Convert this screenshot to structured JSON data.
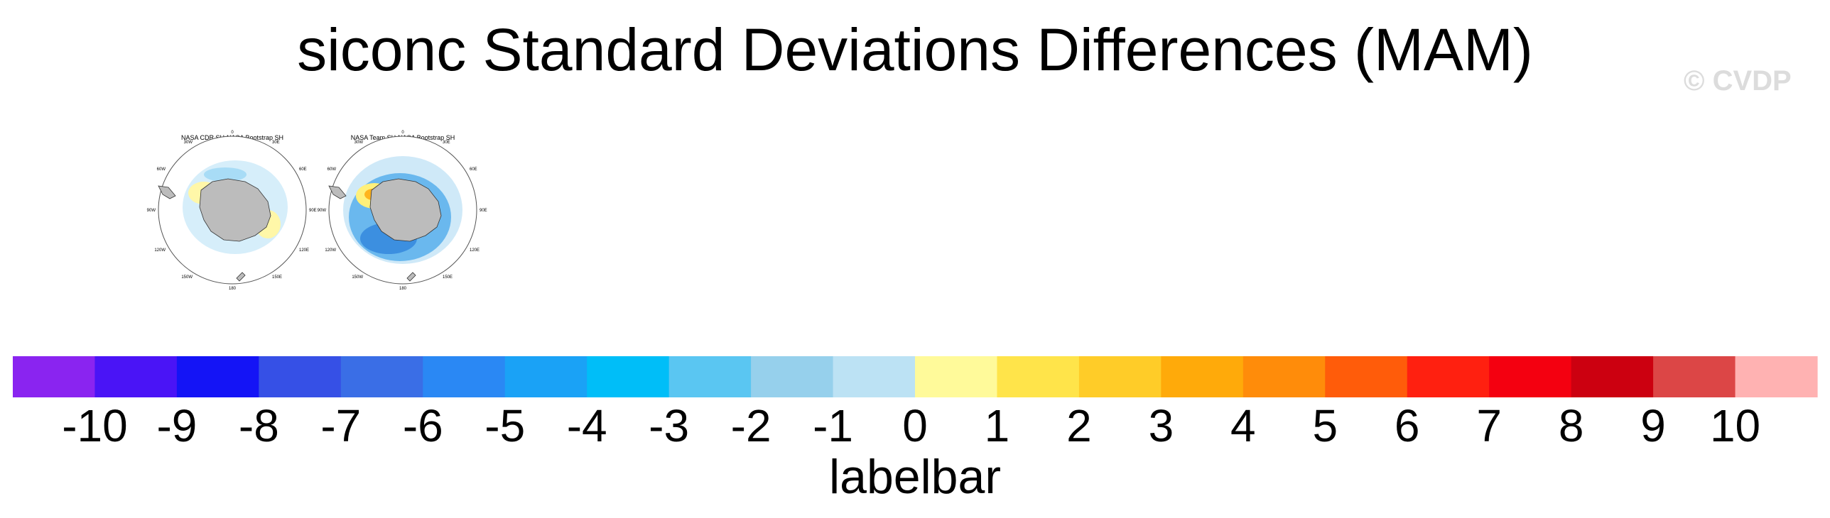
{
  "title": "siconc Standard Deviations Differences (MAM)",
  "watermark": "© CVDP",
  "panels": [
    {
      "title": "NASA CDR SH-NASA Bootstrap SH"
    },
    {
      "title": "NASA Team SH-NASA Bootstrap SH"
    }
  ],
  "map_labels": {
    "top": "0",
    "ne": "30E",
    "e1": "60E",
    "e": "90E",
    "se1": "120E",
    "se": "150E",
    "bottom": "180",
    "sw": "150W",
    "sw1": "120W",
    "w": "90W",
    "nw1": "60W",
    "nw": "30W"
  },
  "labelbar": {
    "title": "labelbar",
    "ticks": [
      "-10",
      "-9",
      "-8",
      "-7",
      "-6",
      "-5",
      "-4",
      "-3",
      "-2",
      "-1",
      "0",
      "1",
      "2",
      "3",
      "4",
      "5",
      "6",
      "7",
      "8",
      "9",
      "10"
    ],
    "colors": [
      "#8a24f0",
      "#4a14f6",
      "#1414f6",
      "#3650e6",
      "#3a6ee6",
      "#2a88f4",
      "#1aa2f6",
      "#00bef8",
      "#5ac6f2",
      "#96d0ec",
      "#bce2f4",
      "#fffa9a",
      "#ffe44a",
      "#ffcc28",
      "#ffaa0a",
      "#ff8c0a",
      "#ff5c0a",
      "#ff2010",
      "#f40010",
      "#cc0010",
      "#dc4646",
      "#ffb2b2"
    ]
  }
}
